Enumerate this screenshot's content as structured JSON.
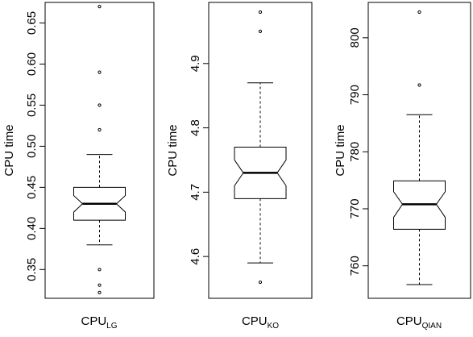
{
  "chart_data": [
    {
      "type": "boxplot",
      "ylabel": "CPU time",
      "xlabel_main": "CPU",
      "xlabel_sub": "LG",
      "ylim": [
        0.315,
        0.675
      ],
      "yticks": [
        "0.35",
        "0.40",
        "0.45",
        "0.50",
        "0.55",
        "0.60",
        "0.65"
      ],
      "ytick_values": [
        0.35,
        0.4,
        0.45,
        0.5,
        0.55,
        0.6,
        0.65
      ],
      "whisker_low": 0.38,
      "q1": 0.41,
      "median": 0.43,
      "q3": 0.45,
      "whisker_high": 0.49,
      "notch_low": 0.42,
      "notch_high": 0.44,
      "outliers": [
        0.322,
        0.331,
        0.35,
        0.52,
        0.55,
        0.59,
        0.67
      ]
    },
    {
      "type": "boxplot",
      "ylabel": "CPU time",
      "xlabel_main": "CPU",
      "xlabel_sub": "KO",
      "ylim": [
        4.535,
        4.995
      ],
      "yticks": [
        "4.6",
        "4.7",
        "4.8",
        "4.9"
      ],
      "ytick_values": [
        4.6,
        4.7,
        4.8,
        4.9
      ],
      "whisker_low": 4.59,
      "q1": 4.69,
      "median": 4.73,
      "q3": 4.77,
      "whisker_high": 4.87,
      "notch_low": 4.71,
      "notch_high": 4.75,
      "outliers": [
        4.56,
        4.95,
        4.98
      ]
    },
    {
      "type": "boxplot",
      "ylabel": "CPU time",
      "xlabel_main": "CPU",
      "xlabel_sub": "QIAN",
      "ylim": [
        754.3,
        806.2
      ],
      "yticks": [
        "760",
        "770",
        "780",
        "790",
        "800"
      ],
      "ytick_values": [
        760,
        770,
        780,
        790,
        800
      ],
      "whisker_low": 756.7,
      "q1": 766.4,
      "median": 770.8,
      "q3": 774.9,
      "whisker_high": 786.5,
      "notch_low": 768.5,
      "notch_high": 773.0,
      "outliers": [
        791.7,
        804.5
      ]
    }
  ]
}
